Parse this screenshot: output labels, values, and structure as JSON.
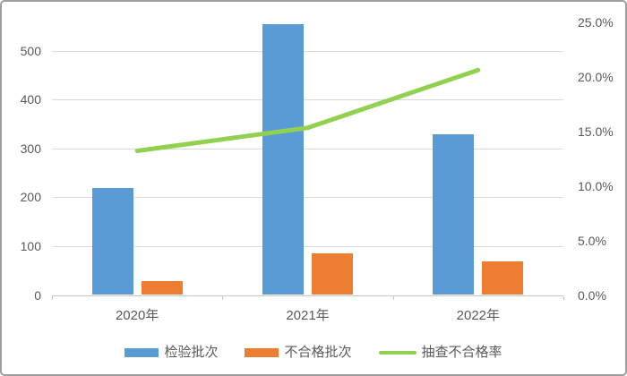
{
  "chart_data": {
    "type": "combo-bar-line",
    "title": "",
    "categories": [
      "2020年",
      "2021年",
      "2022年"
    ],
    "series": [
      {
        "name": "检验批次",
        "type": "bar",
        "axis": "left",
        "color": "#5b9bd5",
        "values": [
          220,
          555,
          330
        ]
      },
      {
        "name": "不合格批次",
        "type": "bar",
        "axis": "left",
        "color": "#ed7d31",
        "values": [
          29,
          85,
          68
        ]
      },
      {
        "name": "抽查不合格率",
        "type": "line",
        "axis": "right",
        "color": "#92d050",
        "unit": "%",
        "values": [
          13.2,
          15.3,
          20.6
        ]
      }
    ],
    "left_axis": {
      "tick_labels": [
        "0",
        "100",
        "200",
        "300",
        "400",
        "500"
      ],
      "tick_values": [
        0,
        100,
        200,
        300,
        400,
        500
      ],
      "min": 0
    },
    "right_axis": {
      "tick_labels": [
        "0.0%",
        "5.0%",
        "10.0%",
        "15.0%",
        "20.0%",
        "25.0%"
      ],
      "tick_values": [
        0,
        5,
        10,
        15,
        20,
        25
      ],
      "min": 0
    },
    "legend_position": "bottom",
    "grid": true
  },
  "colors": {
    "bar_blue": "#5b9bd5",
    "bar_orange": "#ed7d31",
    "line_green": "#92d050",
    "axis_text": "#595959",
    "gridline": "#d9d9d9",
    "chart_border": "#9e9e9e"
  }
}
